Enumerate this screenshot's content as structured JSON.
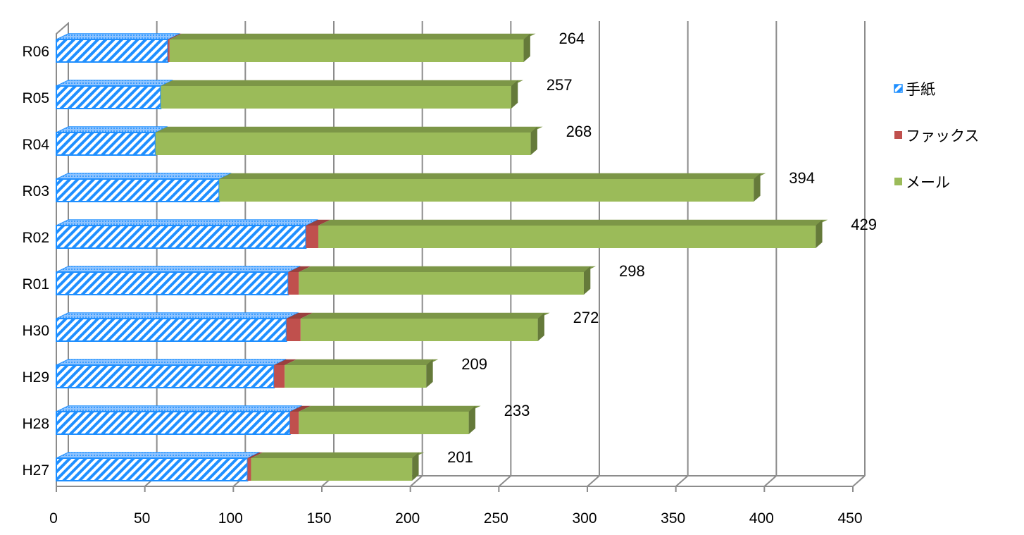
{
  "chart_data": {
    "type": "bar",
    "orientation": "horizontal",
    "stacked": true,
    "three_d": true,
    "categories": [
      "H27",
      "H28",
      "H29",
      "H30",
      "R01",
      "R02",
      "R03",
      "R04",
      "R05",
      "R06"
    ],
    "series": [
      {
        "name": "手紙",
        "values": [
          108,
          132,
          123,
          130,
          131,
          141,
          92,
          56,
          59,
          63
        ],
        "color": "#1f8fff",
        "pattern": "hatch"
      },
      {
        "name": "ファックス",
        "values": [
          2,
          5,
          6,
          8,
          6,
          7,
          0,
          0,
          0,
          1
        ],
        "color": "#c0504d"
      },
      {
        "name": "メール",
        "values": [
          91,
          96,
          80,
          134,
          161,
          281,
          302,
          212,
          198,
          200
        ],
        "color": "#9bbb59"
      }
    ],
    "totals": [
      "201",
      "233",
      "209",
      "272",
      "298",
      "429",
      "394",
      "268",
      "257",
      "264"
    ],
    "xlim": [
      0,
      450
    ],
    "xticks": [
      "0",
      "50",
      "100",
      "150",
      "200",
      "250",
      "300",
      "350",
      "400",
      "450"
    ],
    "grid": true,
    "legend_position": "right"
  }
}
